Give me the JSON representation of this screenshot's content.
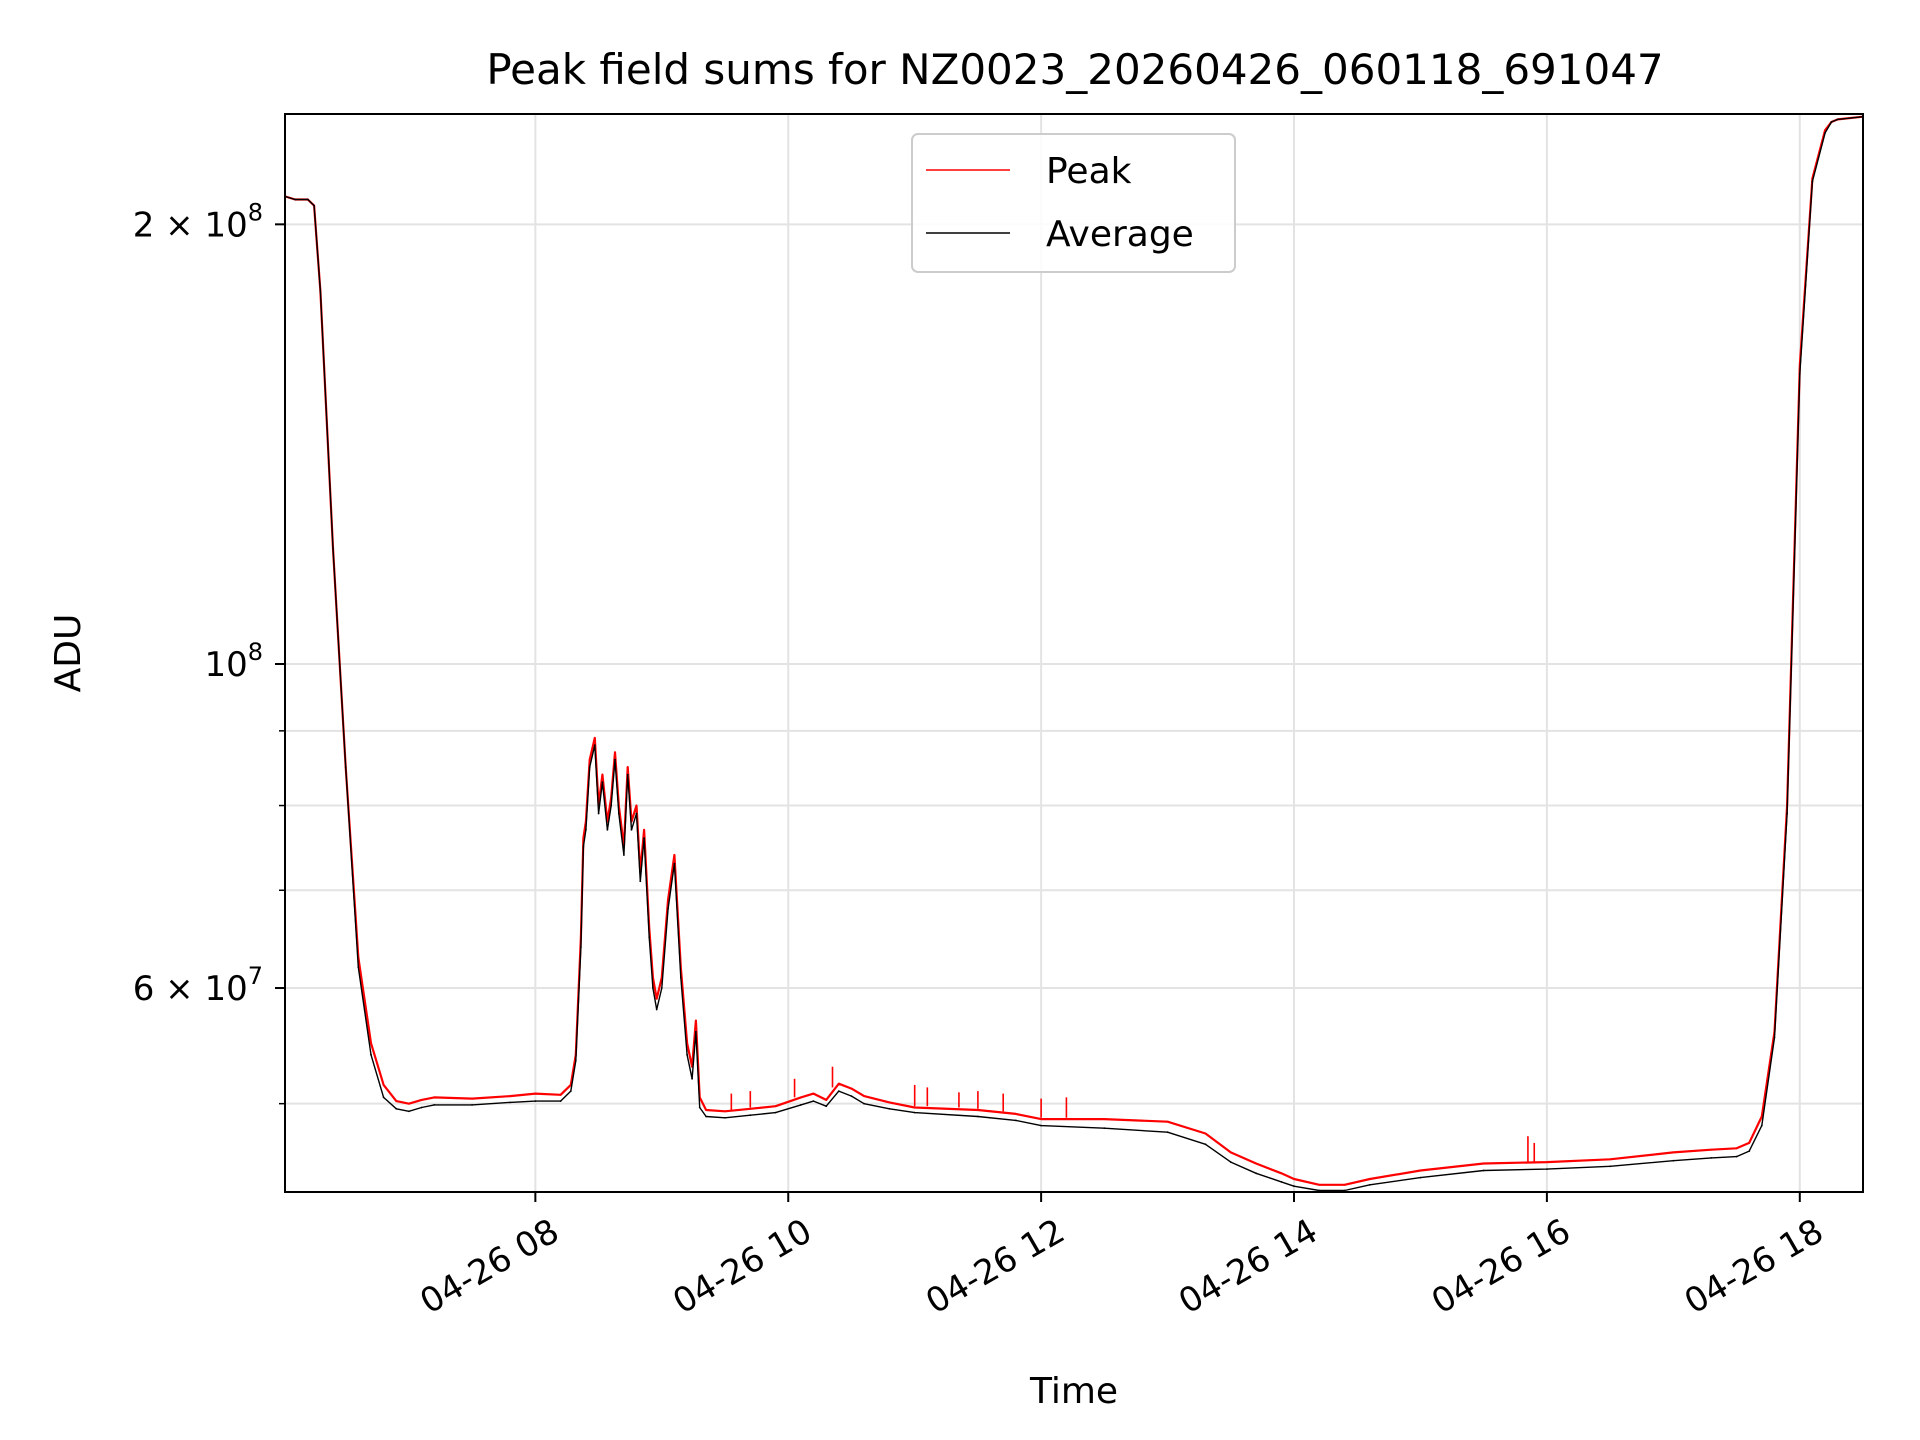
{
  "chart_data": {
    "type": "line",
    "title": "Peak field sums for NZ0023_20260426_060118_691047",
    "xlabel": "Time",
    "ylabel": "ADU",
    "xlim": [
      6.02,
      18.5
    ],
    "ylim": [
      43500000,
      238000000
    ],
    "yscale": "log",
    "grid": true,
    "legend_position": "top-center",
    "x_ticks": [
      {
        "value": 8,
        "label": "04-26 08"
      },
      {
        "value": 10,
        "label": "04-26 10"
      },
      {
        "value": 12,
        "label": "04-26 12"
      },
      {
        "value": 14,
        "label": "04-26 14"
      },
      {
        "value": 16,
        "label": "04-26 16"
      },
      {
        "value": 18,
        "label": "04-26 18"
      }
    ],
    "y_major_ticks": [
      {
        "value": 60000000,
        "mantissa": "6",
        "exponent": "7"
      },
      {
        "value": 100000000,
        "mantissa": "",
        "exponent": "8"
      },
      {
        "value": 200000000,
        "mantissa": "2",
        "exponent": "8"
      }
    ],
    "y_minor_ticks": [
      50000000,
      70000000,
      80000000,
      90000000
    ],
    "tick_base": "10",
    "times_sign": "×",
    "x_time_hours": [
      6.02,
      6.1,
      6.2,
      6.25,
      6.3,
      6.4,
      6.5,
      6.6,
      6.7,
      6.8,
      6.9,
      7.0,
      7.1,
      7.2,
      7.5,
      7.8,
      8.0,
      8.2,
      8.28,
      8.32,
      8.36,
      8.38,
      8.4,
      8.43,
      8.47,
      8.5,
      8.53,
      8.57,
      8.6,
      8.63,
      8.66,
      8.7,
      8.73,
      8.76,
      8.8,
      8.83,
      8.86,
      8.9,
      8.93,
      8.96,
      9.0,
      9.05,
      9.1,
      9.15,
      9.2,
      9.24,
      9.27,
      9.3,
      9.35,
      9.5,
      9.7,
      9.9,
      10.1,
      10.2,
      10.3,
      10.4,
      10.5,
      10.6,
      10.8,
      11.0,
      11.5,
      11.8,
      12.0,
      12.5,
      13.0,
      13.3,
      13.5,
      13.7,
      13.9,
      14.0,
      14.2,
      14.4,
      14.6,
      15.0,
      15.5,
      16.0,
      16.5,
      17.0,
      17.3,
      17.5,
      17.6,
      17.7,
      17.8,
      17.9,
      18.0,
      18.1,
      18.2,
      18.25,
      18.3,
      18.5
    ],
    "series": [
      {
        "name": "Peak",
        "color": "#ff0000",
        "values": [
          209000000,
          208000000,
          208000000,
          206000000,
          180000000,
          120000000,
          85000000,
          63000000,
          55000000,
          51500000,
          50200000,
          50000000,
          50300000,
          50500000,
          50400000,
          50600000,
          50800000,
          50700000,
          51500000,
          54000000,
          65000000,
          76000000,
          78000000,
          86000000,
          89000000,
          80000000,
          84000000,
          78000000,
          81000000,
          87000000,
          80000000,
          75000000,
          85000000,
          78000000,
          80000000,
          72000000,
          77000000,
          66000000,
          61000000,
          59000000,
          61000000,
          69000000,
          74000000,
          62000000,
          55000000,
          53000000,
          57000000,
          50500000,
          49500000,
          49400000,
          49600000,
          49800000,
          50500000,
          50800000,
          50300000,
          51600000,
          51200000,
          50600000,
          50100000,
          49700000,
          49500000,
          49200000,
          48800000,
          48800000,
          48600000,
          47700000,
          46300000,
          45500000,
          44800000,
          44400000,
          44000000,
          44000000,
          44400000,
          45000000,
          45500000,
          45600000,
          45800000,
          46300000,
          46500000,
          46600000,
          47000000,
          49000000,
          56000000,
          80000000,
          160000000,
          215000000,
          232000000,
          235000000,
          236000000,
          237000000
        ]
      },
      {
        "name": "Average",
        "color": "#000000",
        "values": [
          209000000,
          208000000,
          208000000,
          206000000,
          180000000,
          120000000,
          85000000,
          62000000,
          54000000,
          50500000,
          49600000,
          49400000,
          49700000,
          49900000,
          49900000,
          50100000,
          50200000,
          50200000,
          51000000,
          53500000,
          64000000,
          75000000,
          77000000,
          85000000,
          88000000,
          79000000,
          83000000,
          77000000,
          80000000,
          86000000,
          79000000,
          74000000,
          84000000,
          77000000,
          79000000,
          71000000,
          76000000,
          65000000,
          60000000,
          58000000,
          60000000,
          68000000,
          73000000,
          61000000,
          54000000,
          52000000,
          56000000,
          49700000,
          49000000,
          48900000,
          49100000,
          49300000,
          49900000,
          50200000,
          49800000,
          51000000,
          50600000,
          50000000,
          49600000,
          49300000,
          49000000,
          48700000,
          48300000,
          48100000,
          47800000,
          46900000,
          45600000,
          44800000,
          44200000,
          43900000,
          43600000,
          43600000,
          44000000,
          44500000,
          45000000,
          45100000,
          45300000,
          45700000,
          45900000,
          46000000,
          46400000,
          48300000,
          55500000,
          79000000,
          158000000,
          214000000,
          231000000,
          235000000,
          236000000,
          237000000
        ]
      }
    ],
    "spikes": [
      {
        "x": 9.55,
        "base": 49500000,
        "peak": 50800000
      },
      {
        "x": 9.7,
        "base": 49700000,
        "peak": 51000000
      },
      {
        "x": 10.05,
        "base": 50500000,
        "peak": 52000000
      },
      {
        "x": 10.35,
        "base": 51300000,
        "peak": 53000000
      },
      {
        "x": 11.0,
        "base": 49800000,
        "peak": 51500000
      },
      {
        "x": 11.1,
        "base": 49800000,
        "peak": 51300000
      },
      {
        "x": 11.35,
        "base": 49700000,
        "peak": 50900000
      },
      {
        "x": 11.5,
        "base": 49600000,
        "peak": 51000000
      },
      {
        "x": 11.7,
        "base": 49400000,
        "peak": 50800000
      },
      {
        "x": 12.0,
        "base": 48900000,
        "peak": 50400000
      },
      {
        "x": 12.2,
        "base": 48900000,
        "peak": 50500000
      },
      {
        "x": 15.85,
        "base": 45600000,
        "peak": 47500000
      },
      {
        "x": 15.9,
        "base": 45600000,
        "peak": 47000000
      }
    ]
  }
}
